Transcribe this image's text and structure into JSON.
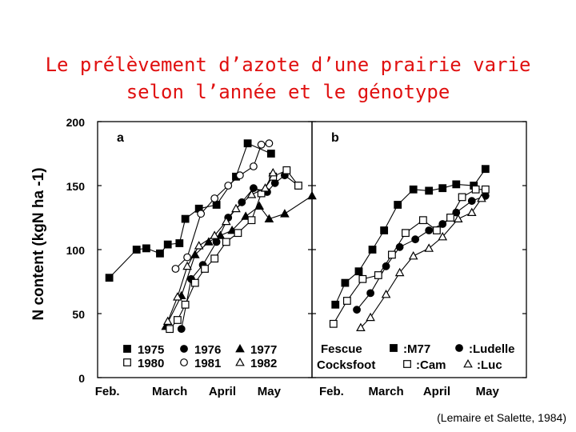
{
  "title": {
    "line1": "Le prélèvement d’azote d’une prairie varie",
    "line2": "selon l’année et le génotype"
  },
  "citation": "(Lemaire et Salette, 1984)",
  "chart_data": [
    {
      "type": "line",
      "panel_label": "a",
      "ylabel": "N content (kgN ha -1)",
      "ylim": [
        0,
        200
      ],
      "yticks": [
        0,
        50,
        100,
        150,
        200
      ],
      "xlim": [
        0,
        110
      ],
      "xticks": [
        {
          "label": "Feb.",
          "x": 5
        },
        {
          "label": "March",
          "x": 37
        },
        {
          "label": "April",
          "x": 64
        },
        {
          "label": "May",
          "x": 88
        }
      ],
      "legend": [
        "1975",
        "1976",
        "1977",
        "1980",
        "1981",
        "1982"
      ],
      "legend_position": "bottom",
      "series": [
        {
          "name": "1975",
          "marker": "square-filled",
          "points": [
            [
              6,
              78
            ],
            [
              20,
              100
            ],
            [
              25,
              101
            ],
            [
              32,
              97
            ],
            [
              36,
              104
            ],
            [
              42,
              105
            ],
            [
              45,
              124
            ],
            [
              52,
              132
            ],
            [
              61,
              135
            ],
            [
              71,
              157
            ],
            [
              77,
              183
            ],
            [
              89,
              175
            ]
          ]
        },
        {
          "name": "1976",
          "marker": "circle-filled",
          "points": [
            [
              43,
              38
            ],
            [
              48,
              77
            ],
            [
              54,
              88
            ],
            [
              61,
              106
            ],
            [
              67,
              125
            ],
            [
              74,
              137
            ],
            [
              80,
              148
            ],
            [
              87,
              145
            ],
            [
              91,
              152
            ],
            [
              96,
              158
            ],
            [
              103,
              150
            ]
          ]
        },
        {
          "name": "1977",
          "marker": "triangle-filled",
          "points": [
            [
              35,
              40
            ],
            [
              43,
              64
            ],
            [
              50,
              96
            ],
            [
              57,
              106
            ],
            [
              63,
              111
            ],
            [
              69,
              115
            ],
            [
              76,
              126
            ],
            [
              83,
              134
            ],
            [
              88,
              124
            ],
            [
              96,
              128
            ],
            [
              110,
              142
            ]
          ]
        },
        {
          "name": "1980",
          "marker": "square-open",
          "points": [
            [
              37,
              38
            ],
            [
              41,
              45
            ],
            [
              45,
              57
            ],
            [
              50,
              74
            ],
            [
              55,
              85
            ],
            [
              60,
              93
            ],
            [
              66,
              106
            ],
            [
              72,
              113
            ],
            [
              79,
              123
            ],
            [
              84,
              144
            ],
            [
              90,
              157
            ],
            [
              97,
              162
            ],
            [
              103,
              150
            ]
          ]
        },
        {
          "name": "1981",
          "marker": "circle-open",
          "points": [
            [
              40,
              85
            ],
            [
              46,
              94
            ],
            [
              53,
              128
            ],
            [
              60,
              140
            ],
            [
              67,
              150
            ],
            [
              73,
              158
            ],
            [
              80,
              165
            ],
            [
              84,
              182
            ],
            [
              88,
              183
            ]
          ]
        },
        {
          "name": "1982",
          "marker": "triangle-open",
          "points": [
            [
              36,
              44
            ],
            [
              41,
              63
            ],
            [
              46,
              87
            ],
            [
              52,
              103
            ],
            [
              60,
              111
            ],
            [
              66,
              122
            ],
            [
              71,
              132
            ],
            [
              79,
              143
            ],
            [
              86,
              148
            ],
            [
              90,
              160
            ]
          ]
        }
      ]
    },
    {
      "type": "line",
      "panel_label": "b",
      "ylim": [
        0,
        200
      ],
      "yticks": [
        0,
        50,
        100,
        150,
        200
      ],
      "xlim": [
        0,
        110
      ],
      "xticks": [
        {
          "label": "Feb.",
          "x": 10
        },
        {
          "label": "March",
          "x": 38
        },
        {
          "label": "April",
          "x": 64
        },
        {
          "label": "May",
          "x": 90
        }
      ],
      "legend": [
        "Fescue",
        ":M77",
        ":Ludelle",
        "Cocksfoot",
        ":Cam",
        ":Luc"
      ],
      "legend_position": "bottom",
      "series": [
        {
          "name": ":M77",
          "marker": "square-filled",
          "points": [
            [
              12,
              57
            ],
            [
              17,
              74
            ],
            [
              24,
              83
            ],
            [
              31,
              100
            ],
            [
              37,
              115
            ],
            [
              44,
              135
            ],
            [
              52,
              147
            ],
            [
              60,
              146
            ],
            [
              67,
              148
            ],
            [
              74,
              151
            ],
            [
              83,
              150
            ],
            [
              89,
              163
            ]
          ]
        },
        {
          "name": ":Ludelle",
          "marker": "circle-filled",
          "points": [
            [
              23,
              53
            ],
            [
              30,
              66
            ],
            [
              38,
              87
            ],
            [
              45,
              102
            ],
            [
              53,
              108
            ],
            [
              60,
              115
            ],
            [
              67,
              120
            ],
            [
              74,
              129
            ],
            [
              82,
              138
            ],
            [
              89,
              142
            ]
          ]
        },
        {
          "name": ":Cam",
          "marker": "square-open",
          "points": [
            [
              11,
              42
            ],
            [
              18,
              60
            ],
            [
              26,
              77
            ],
            [
              34,
              80
            ],
            [
              41,
              96
            ],
            [
              48,
              113
            ],
            [
              57,
              123
            ],
            [
              64,
              115
            ],
            [
              71,
              125
            ],
            [
              77,
              141
            ],
            [
              84,
              147
            ],
            [
              89,
              147
            ]
          ]
        },
        {
          "name": ":Luc",
          "marker": "triangle-open",
          "points": [
            [
              25,
              39
            ],
            [
              30,
              47
            ],
            [
              38,
              65
            ],
            [
              45,
              82
            ],
            [
              52,
              95
            ],
            [
              60,
              101
            ],
            [
              67,
              110
            ],
            [
              75,
              124
            ],
            [
              82,
              129
            ],
            [
              87,
              140
            ]
          ]
        }
      ]
    }
  ]
}
